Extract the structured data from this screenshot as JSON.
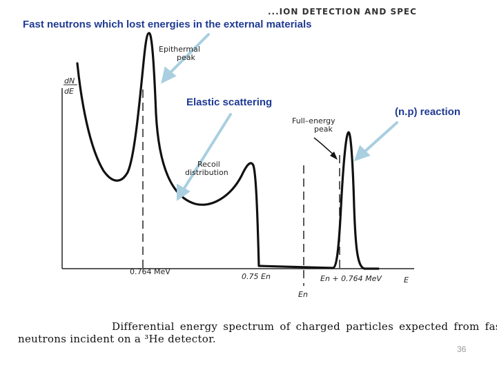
{
  "header_fragment": "...ION DETECTION AND SPEC",
  "annotations": {
    "fast_neutrons": "Fast neutrons which lost energies in the external materials",
    "elastic": "Elastic scattering",
    "np_reaction": "(n.p) reaction"
  },
  "figure_labels": {
    "y_axis": [
      "dN",
      "dE"
    ],
    "epithermal": [
      "Epithermal",
      "peak"
    ],
    "full_energy": [
      "Full–energy",
      "peak"
    ],
    "recoil": [
      "Recoil",
      "distribution"
    ]
  },
  "axis_ticks": {
    "t1": "0.764 MeV",
    "t2": "0.75 En",
    "t3": "En + 0.764 MeV",
    "t4": "E",
    "t5": "En"
  },
  "caption": {
    "line1": "Differential energy spectrum of charged particles expected from fast",
    "line2": "neutrons incident on a ³He detector."
  },
  "page_number": "36",
  "colors": {
    "annotation_text": "#1f3a93",
    "arrow": "#a9cfe0",
    "curve": "#111111"
  }
}
